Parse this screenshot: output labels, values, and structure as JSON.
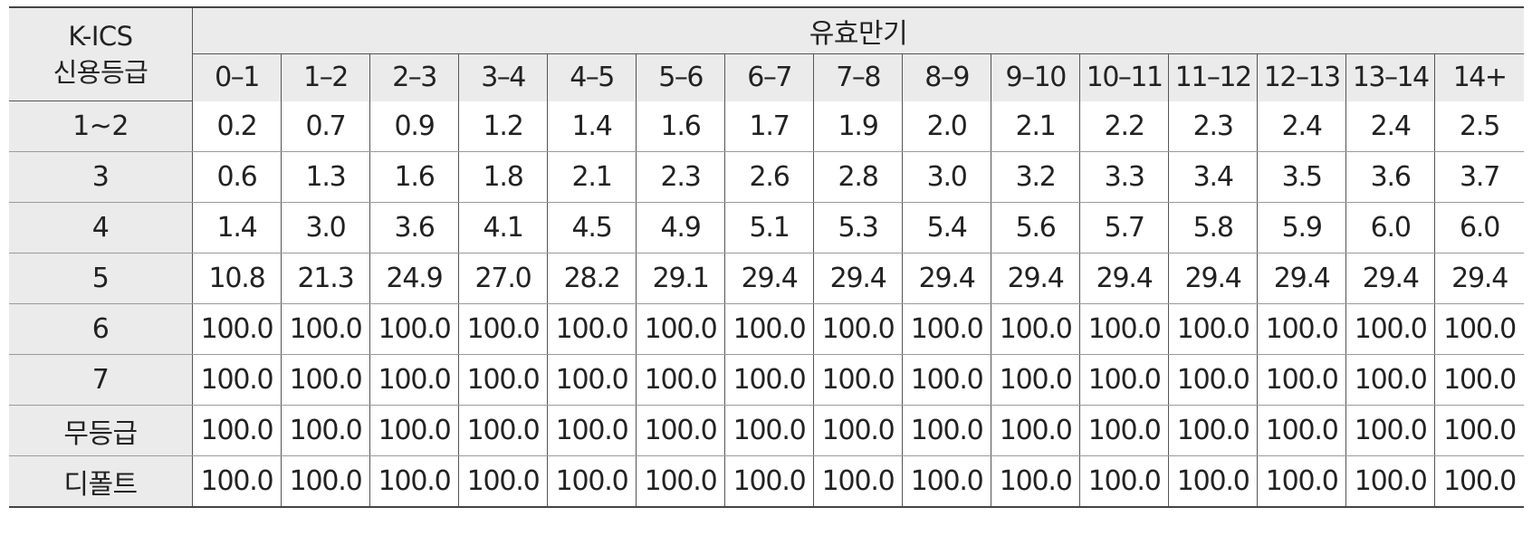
{
  "table": {
    "corner_header": [
      "K-ICS",
      "신용등급"
    ],
    "group_header": "유효만기",
    "columns": [
      "0–1",
      "1–2",
      "2–3",
      "3–4",
      "4–5",
      "5–6",
      "6–7",
      "7–8",
      "8–9",
      "9–10",
      "10–11",
      "11–12",
      "12–13",
      "13–14",
      "14+"
    ],
    "rows": [
      {
        "grade": "1~2",
        "values": [
          "0.2",
          "0.7",
          "0.9",
          "1.2",
          "1.4",
          "1.6",
          "1.7",
          "1.9",
          "2.0",
          "2.1",
          "2.2",
          "2.3",
          "2.4",
          "2.4",
          "2.5"
        ]
      },
      {
        "grade": "3",
        "values": [
          "0.6",
          "1.3",
          "1.6",
          "1.8",
          "2.1",
          "2.3",
          "2.6",
          "2.8",
          "3.0",
          "3.2",
          "3.3",
          "3.4",
          "3.5",
          "3.6",
          "3.7"
        ]
      },
      {
        "grade": "4",
        "values": [
          "1.4",
          "3.0",
          "3.6",
          "4.1",
          "4.5",
          "4.9",
          "5.1",
          "5.3",
          "5.4",
          "5.6",
          "5.7",
          "5.8",
          "5.9",
          "6.0",
          "6.0"
        ]
      },
      {
        "grade": "5",
        "values": [
          "10.8",
          "21.3",
          "24.9",
          "27.0",
          "28.2",
          "29.1",
          "29.4",
          "29.4",
          "29.4",
          "29.4",
          "29.4",
          "29.4",
          "29.4",
          "29.4",
          "29.4"
        ]
      },
      {
        "grade": "6",
        "values": [
          "100.0",
          "100.0",
          "100.0",
          "100.0",
          "100.0",
          "100.0",
          "100.0",
          "100.0",
          "100.0",
          "100.0",
          "100.0",
          "100.0",
          "100.0",
          "100.0",
          "100.0"
        ]
      },
      {
        "grade": "7",
        "values": [
          "100.0",
          "100.0",
          "100.0",
          "100.0",
          "100.0",
          "100.0",
          "100.0",
          "100.0",
          "100.0",
          "100.0",
          "100.0",
          "100.0",
          "100.0",
          "100.0",
          "100.0"
        ]
      },
      {
        "grade": "무등급",
        "values": [
          "100.0",
          "100.0",
          "100.0",
          "100.0",
          "100.0",
          "100.0",
          "100.0",
          "100.0",
          "100.0",
          "100.0",
          "100.0",
          "100.0",
          "100.0",
          "100.0",
          "100.0"
        ]
      },
      {
        "grade": "디폴트",
        "values": [
          "100.0",
          "100.0",
          "100.0",
          "100.0",
          "100.0",
          "100.0",
          "100.0",
          "100.0",
          "100.0",
          "100.0",
          "100.0",
          "100.0",
          "100.0",
          "100.0",
          "100.0"
        ]
      }
    ]
  },
  "colors": {
    "header_background": "#ebebeb",
    "border": "#555555",
    "text": "#222222"
  }
}
